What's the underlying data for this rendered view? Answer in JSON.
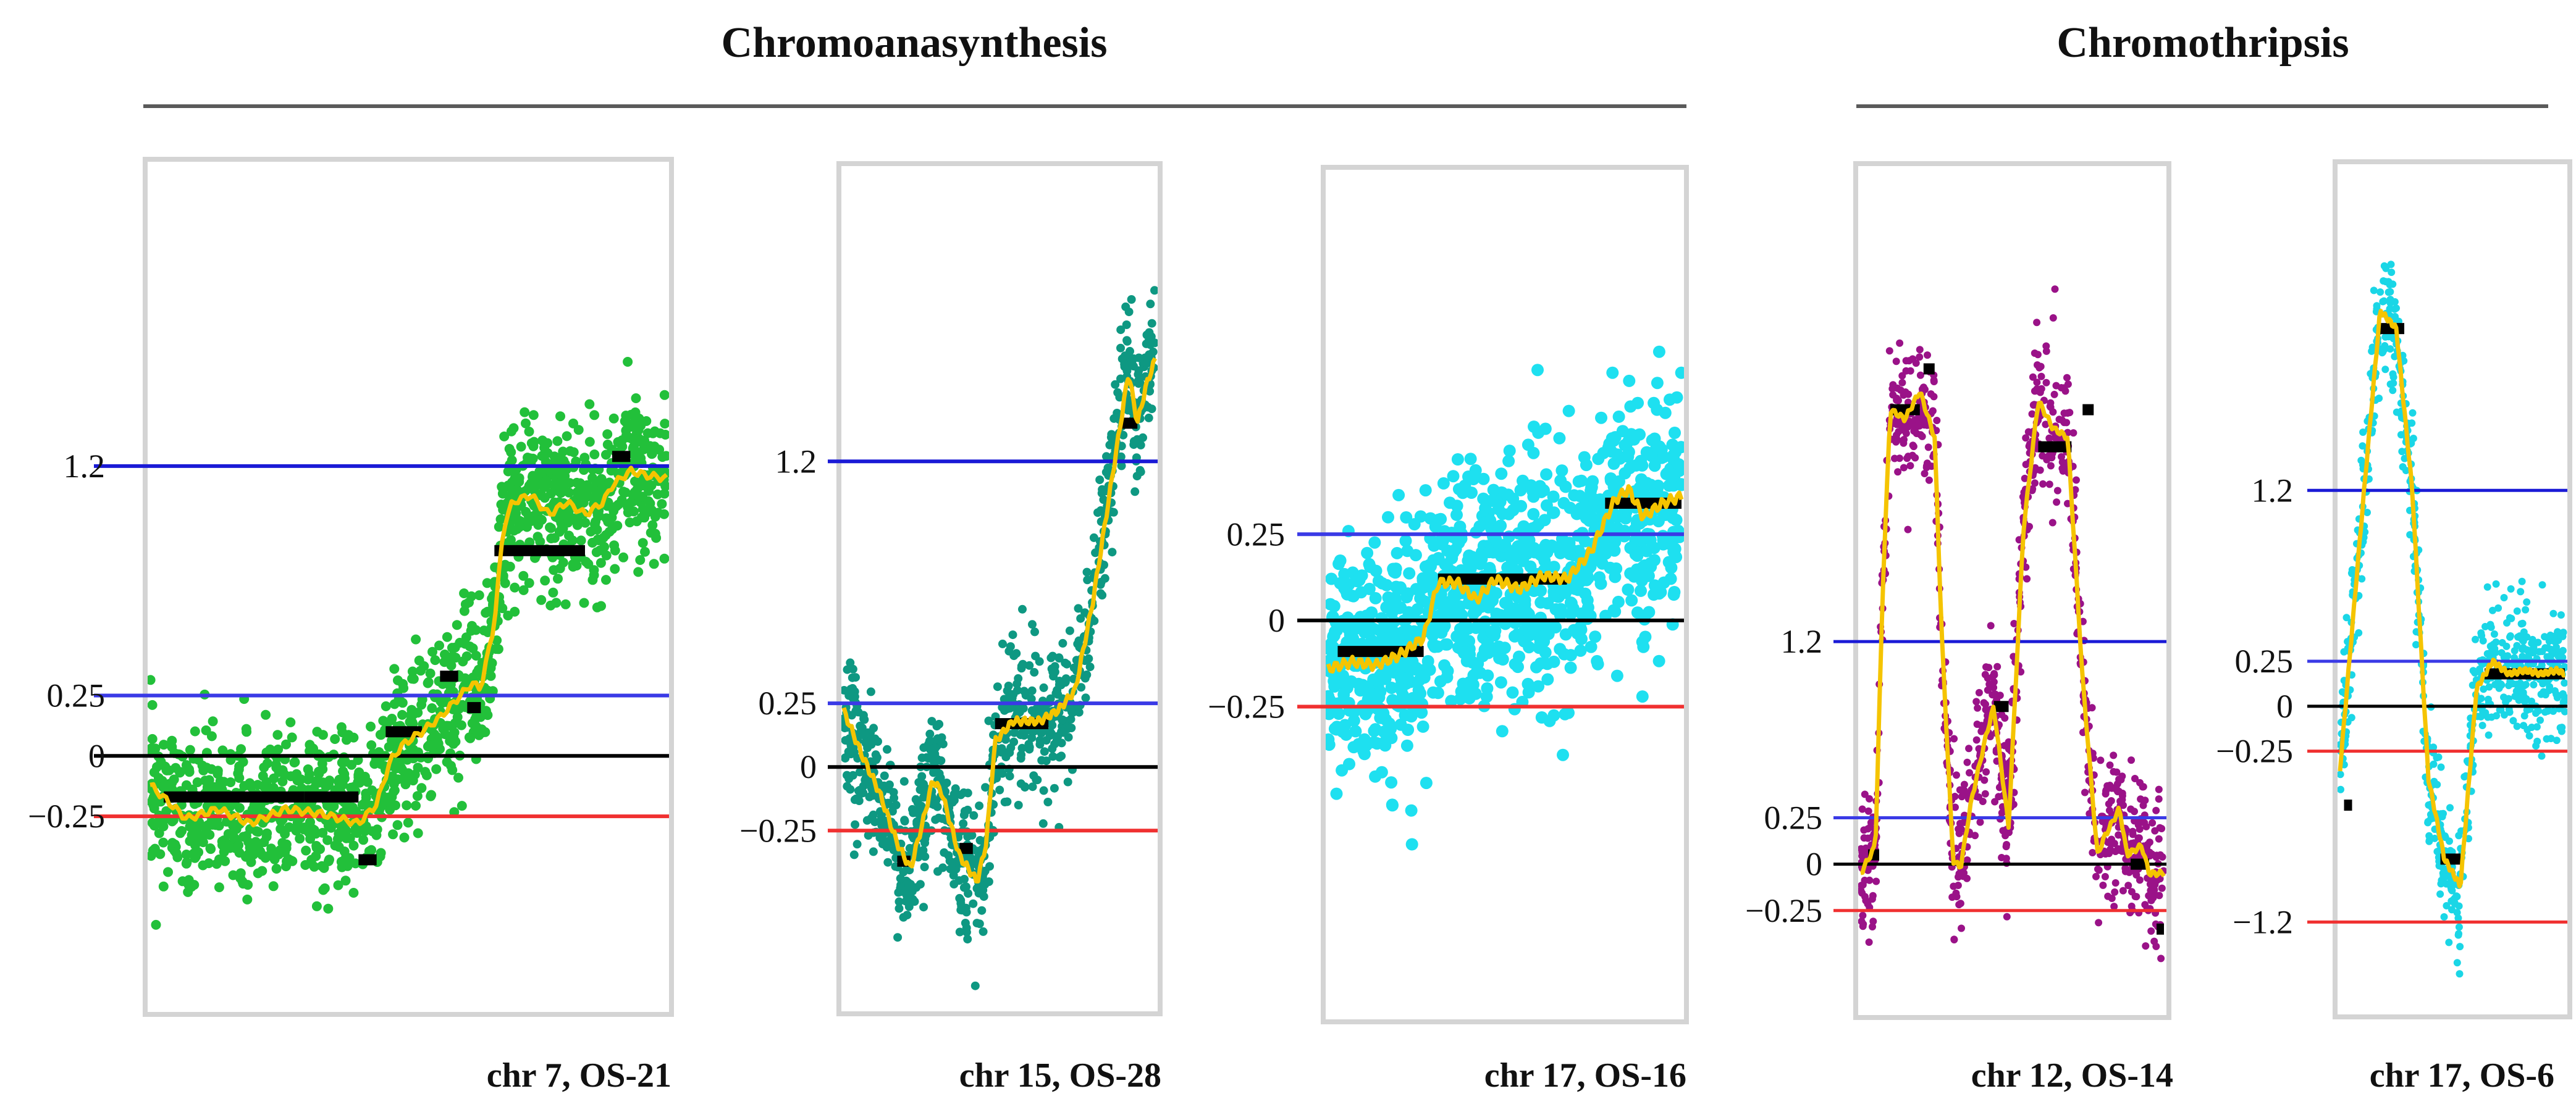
{
  "groups": [
    {
      "title": "Chromoanasynthesis"
    },
    {
      "title": "Chromothripsis"
    }
  ],
  "colors": {
    "blue_line": "#1a1ad6",
    "blue_line_light": "#3a3ae6",
    "red_line": "#f03030",
    "zero_line": "#000000",
    "segment": "#000000",
    "smooth": "#f5c400",
    "frame": "#d4d4d4"
  },
  "chart_data": [
    {
      "type": "scatter",
      "title": "chr 7, OS-21",
      "dot_color": "#22c03a",
      "ylim": [
        -1.05,
        2.45
      ],
      "yticks": [
        {
          "value": 1.2,
          "label": "1.2",
          "color": "blue"
        },
        {
          "value": 0.25,
          "label": "0.25",
          "color": "blue"
        },
        {
          "value": 0,
          "label": "0",
          "color": "black"
        },
        {
          "value": -0.25,
          "label": "−0.25",
          "color": "red"
        }
      ],
      "n_points": 1400,
      "noise": 0.16,
      "density_shape": "uniform",
      "smooth": [
        [
          0,
          -0.12
        ],
        [
          0.08,
          -0.26
        ],
        [
          0.15,
          -0.22
        ],
        [
          0.22,
          -0.28
        ],
        [
          0.3,
          -0.22
        ],
        [
          0.38,
          -0.24
        ],
        [
          0.46,
          -0.28
        ],
        [
          0.5,
          -0.2
        ],
        [
          0.53,
          -0.02
        ],
        [
          0.56,
          0.05
        ],
        [
          0.6,
          0.1
        ],
        [
          0.64,
          0.16
        ],
        [
          0.68,
          0.24
        ],
        [
          0.71,
          0.3
        ],
        [
          0.73,
          0.28
        ],
        [
          0.76,
          0.55
        ],
        [
          0.78,
          0.95
        ],
        [
          0.8,
          1.05
        ],
        [
          0.84,
          1.08
        ],
        [
          0.88,
          1.0
        ],
        [
          0.92,
          1.05
        ],
        [
          0.96,
          1.0
        ],
        [
          1.0,
          1.05
        ],
        [
          1.02,
          1.12
        ],
        [
          1.06,
          1.18
        ],
        [
          1.1,
          1.16
        ],
        [
          1.14,
          1.15
        ]
      ],
      "segments": [
        [
          0.03,
          0.18,
          -0.17
        ],
        [
          0.18,
          0.34,
          -0.17
        ],
        [
          0.34,
          0.46,
          -0.17
        ],
        [
          0.46,
          0.5,
          -0.43
        ],
        [
          0.52,
          0.6,
          0.1
        ],
        [
          0.64,
          0.68,
          0.33
        ],
        [
          0.7,
          0.73,
          0.2
        ],
        [
          0.76,
          0.96,
          0.85
        ],
        [
          1.02,
          1.06,
          1.24
        ]
      ]
    },
    {
      "type": "scatter",
      "title": "chr 15, OS-28",
      "dot_color": "#0e9882",
      "ylim": [
        -0.95,
        2.35
      ],
      "yticks": [
        {
          "value": 1.2,
          "label": "1.2",
          "color": "blue"
        },
        {
          "value": 0.25,
          "label": "0.25",
          "color": "blue"
        },
        {
          "value": 0,
          "label": "0",
          "color": "black"
        },
        {
          "value": -0.25,
          "label": "−0.25",
          "color": "red"
        }
      ],
      "n_points": 900,
      "noise": 0.14,
      "density_shape": "clustered",
      "smooth": [
        [
          0,
          0.22
        ],
        [
          0.04,
          0.05
        ],
        [
          0.08,
          -0.1
        ],
        [
          0.12,
          -0.3
        ],
        [
          0.15,
          -0.4
        ],
        [
          0.18,
          -0.2
        ],
        [
          0.2,
          -0.05
        ],
        [
          0.22,
          -0.1
        ],
        [
          0.26,
          -0.35
        ],
        [
          0.3,
          -0.45
        ],
        [
          0.32,
          -0.3
        ],
        [
          0.34,
          0.1
        ],
        [
          0.38,
          0.18
        ],
        [
          0.44,
          0.18
        ],
        [
          0.48,
          0.22
        ],
        [
          0.52,
          0.3
        ],
        [
          0.56,
          0.65
        ],
        [
          0.6,
          1.1
        ],
        [
          0.64,
          1.55
        ],
        [
          0.66,
          1.35
        ],
        [
          0.68,
          1.5
        ],
        [
          0.7,
          1.6
        ]
      ],
      "segments": [
        [
          0.12,
          0.15,
          -0.37
        ],
        [
          0.26,
          0.29,
          -0.32
        ],
        [
          0.34,
          0.46,
          0.17
        ],
        [
          0.62,
          0.66,
          1.35
        ]
      ]
    },
    {
      "type": "scatter",
      "title": "chr 17, OS-16",
      "dot_color": "#1ee0f0",
      "ylim": [
        -1.15,
        1.3
      ],
      "yticks": [
        {
          "value": 0.25,
          "label": "0.25",
          "color": "blue"
        },
        {
          "value": 0,
          "label": "0",
          "color": "black"
        },
        {
          "value": -0.25,
          "label": "−0.25",
          "color": "red"
        }
      ],
      "n_points": 1100,
      "noise": 0.17,
      "density_shape": "uniform",
      "smooth": [
        [
          0,
          -0.14
        ],
        [
          0.05,
          -0.12
        ],
        [
          0.1,
          -0.13
        ],
        [
          0.15,
          -0.1
        ],
        [
          0.2,
          -0.05
        ],
        [
          0.23,
          0.11
        ],
        [
          0.27,
          0.11
        ],
        [
          0.31,
          0.06
        ],
        [
          0.35,
          0.12
        ],
        [
          0.4,
          0.09
        ],
        [
          0.45,
          0.13
        ],
        [
          0.5,
          0.12
        ],
        [
          0.55,
          0.2
        ],
        [
          0.6,
          0.35
        ],
        [
          0.63,
          0.38
        ],
        [
          0.66,
          0.3
        ],
        [
          0.7,
          0.34
        ],
        [
          0.74,
          0.36
        ]
      ],
      "segments": [
        [
          0.02,
          0.2,
          -0.09
        ],
        [
          0.23,
          0.5,
          0.12
        ],
        [
          0.58,
          0.74,
          0.34
        ]
      ]
    },
    {
      "type": "scatter",
      "title": "chr 12, OS-14",
      "dot_color": "#9a1288",
      "ylim": [
        -0.8,
        3.75
      ],
      "yticks": [
        {
          "value": 1.2,
          "label": "1.2",
          "color": "blue"
        },
        {
          "value": 0.25,
          "label": "0.25",
          "color": "blue"
        },
        {
          "value": 0,
          "label": "0",
          "color": "black"
        },
        {
          "value": -0.25,
          "label": "−0.25",
          "color": "red"
        }
      ],
      "n_points": 900,
      "noise": 0.2,
      "density_shape": "clustered",
      "smooth": [
        [
          0,
          -0.05
        ],
        [
          0.04,
          0.1
        ],
        [
          0.06,
          1.5
        ],
        [
          0.08,
          2.45
        ],
        [
          0.12,
          2.4
        ],
        [
          0.16,
          2.55
        ],
        [
          0.2,
          2.3
        ],
        [
          0.22,
          1.2
        ],
        [
          0.25,
          0.02
        ],
        [
          0.27,
          -0.02
        ],
        [
          0.3,
          0.35
        ],
        [
          0.34,
          0.7
        ],
        [
          0.36,
          0.85
        ],
        [
          0.4,
          0.2
        ],
        [
          0.44,
          1.8
        ],
        [
          0.48,
          2.5
        ],
        [
          0.52,
          2.35
        ],
        [
          0.56,
          2.3
        ],
        [
          0.6,
          1.0
        ],
        [
          0.64,
          0.05
        ],
        [
          0.66,
          0.15
        ],
        [
          0.7,
          0.3
        ],
        [
          0.72,
          0.05
        ],
        [
          0.76,
          0.1
        ],
        [
          0.78,
          -0.05
        ],
        [
          0.82,
          -0.05
        ]
      ],
      "segments": [
        [
          0.02,
          0.05,
          0.05
        ],
        [
          0.08,
          0.16,
          2.45
        ],
        [
          0.17,
          0.2,
          2.67
        ],
        [
          0.36,
          0.4,
          0.85
        ],
        [
          0.48,
          0.57,
          2.25
        ],
        [
          0.6,
          0.63,
          2.45
        ],
        [
          0.73,
          0.78,
          0.0
        ],
        [
          0.8,
          0.82,
          -0.35
        ]
      ]
    },
    {
      "type": "scatter",
      "title": "chr 17, OS-6",
      "dot_color": "#1ad6e6",
      "ylim": [
        -1.7,
        3.0
      ],
      "yticks": [
        {
          "value": 1.2,
          "label": "1.2",
          "color": "blue"
        },
        {
          "value": 0.25,
          "label": "0.25",
          "color": "blue"
        },
        {
          "value": 0,
          "label": "0",
          "color": "black"
        },
        {
          "value": -0.25,
          "label": "−0.25",
          "color": "red"
        },
        {
          "value": -1.2,
          "label": "−1.2",
          "color": "red"
        }
      ],
      "n_points": 700,
      "noise": 0.18,
      "density_shape": "clustered",
      "smooth": [
        [
          0,
          -0.35
        ],
        [
          0.06,
          1.2
        ],
        [
          0.1,
          2.2
        ],
        [
          0.14,
          2.1
        ],
        [
          0.18,
          1.2
        ],
        [
          0.22,
          -0.4
        ],
        [
          0.26,
          -0.85
        ],
        [
          0.3,
          -1.0
        ],
        [
          0.34,
          0.1
        ],
        [
          0.38,
          0.25
        ],
        [
          0.42,
          0.18
        ],
        [
          0.46,
          0.2
        ],
        [
          0.5,
          0.18
        ],
        [
          0.54,
          0.2
        ],
        [
          0.56,
          0.18
        ]
      ],
      "segments": [
        [
          0.01,
          0.03,
          -0.55
        ],
        [
          0.1,
          0.16,
          2.1
        ],
        [
          0.25,
          0.3,
          -0.85
        ],
        [
          0.36,
          0.56,
          0.18
        ]
      ]
    }
  ]
}
